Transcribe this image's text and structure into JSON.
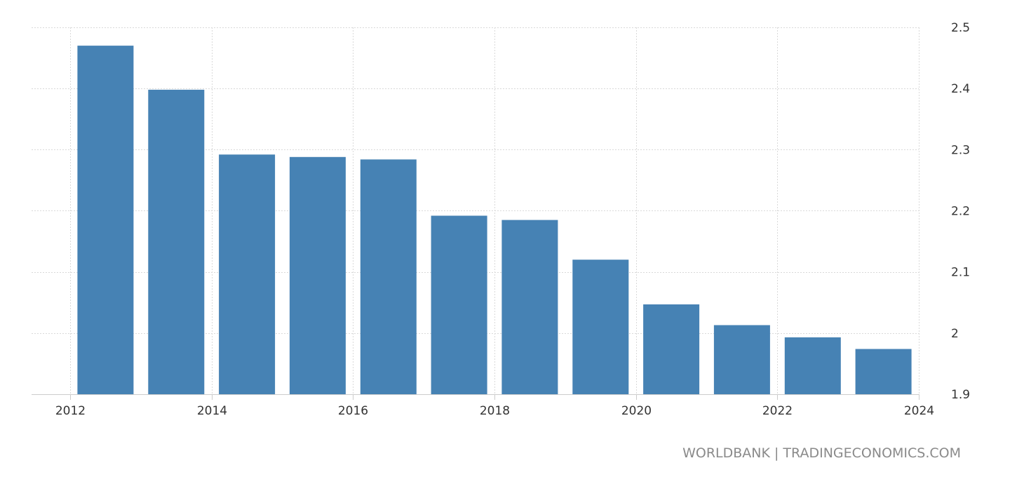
{
  "chart_data": {
    "type": "bar",
    "title": "",
    "xlabel": "",
    "ylabel": "",
    "x": [
      2012.5,
      2013.5,
      2014.5,
      2015.5,
      2016.5,
      2017.5,
      2018.5,
      2019.5,
      2020.5,
      2021.5,
      2022.5,
      2023.5
    ],
    "values": [
      2.47,
      2.398,
      2.292,
      2.288,
      2.284,
      2.192,
      2.185,
      2.12,
      2.047,
      2.013,
      1.993,
      1.974
    ],
    "color": "#4682b4",
    "xlim": [
      2012,
      2024
    ],
    "ylim": [
      1.9,
      2.5
    ],
    "x_ticks": [
      "2012",
      "2014",
      "2016",
      "2018",
      "2020",
      "2022",
      "2024"
    ],
    "x_tick_values": [
      2012,
      2014,
      2016,
      2018,
      2020,
      2022,
      2024
    ],
    "y_ticks": [
      "1.9",
      "2",
      "2.1",
      "2.2",
      "2.3",
      "2.4",
      "2.5"
    ],
    "y_tick_values": [
      1.9,
      2.0,
      2.1,
      2.2,
      2.3,
      2.4,
      2.5
    ],
    "y_axis_side": "right",
    "grid": true
  },
  "source": "WORLDBANK | TRADINGECONOMICS.COM"
}
